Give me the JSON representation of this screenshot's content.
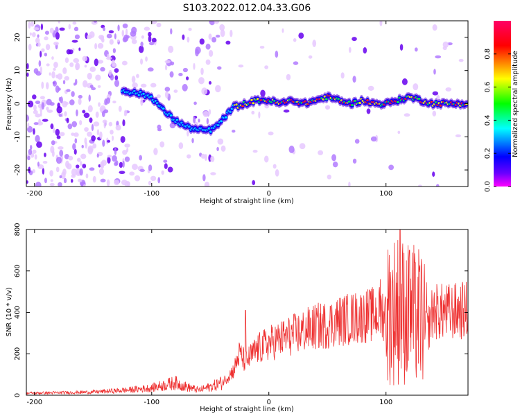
{
  "title": "S103.2022.012.04.33.G06",
  "chart_data": [
    {
      "type": "heatmap",
      "xlabel": "Height of straight line (km)",
      "ylabel": "Frequency (Hz)",
      "xlim": [
        -207,
        170
      ],
      "ylim": [
        -25,
        25
      ],
      "xticks": [
        -200,
        -100,
        0,
        100
      ],
      "yticks": [
        -20,
        -10,
        0,
        10,
        20
      ],
      "colorbar": {
        "label": "Normalized spectral amplitude",
        "range": [
          0,
          1
        ],
        "ticks": [
          "0.0",
          "0.2",
          "0.4",
          "0.6",
          "0.8"
        ],
        "colormap": [
          "#ff00ff",
          "#6a00ff",
          "#0000ff",
          "#00ffff",
          "#00ff00",
          "#ffff00",
          "#ff0000",
          "#ff0066"
        ]
      },
      "ridge": {
        "x": [
          -125,
          -110,
          -100,
          -90,
          -80,
          -70,
          -60,
          -50,
          -45,
          -40,
          -35,
          -30,
          -20,
          -10,
          0,
          10,
          20,
          30,
          40,
          50,
          60,
          70,
          80,
          90,
          100,
          110,
          120,
          130,
          140,
          150,
          160,
          170
        ],
        "y": [
          4,
          3,
          2,
          -2,
          -5,
          -7,
          -8,
          -8,
          -7,
          -5,
          -3,
          -1,
          0,
          1,
          1,
          0,
          1,
          0,
          1,
          2,
          1,
          0,
          1,
          0,
          0,
          1,
          2,
          1,
          0,
          0,
          0,
          0
        ]
      }
    },
    {
      "type": "line",
      "xlabel": "Height of straight line (km)",
      "ylabel": "SNR (10 * v/v)",
      "xlim": [
        -207,
        170
      ],
      "ylim": [
        0,
        800
      ],
      "xticks": [
        -200,
        -100,
        0,
        100
      ],
      "yticks": [
        0,
        200,
        400,
        600,
        800
      ],
      "line_color": "#ee3030",
      "series": [
        {
          "x": [
            -207,
            -180,
            -150,
            -120,
            -100,
            -80,
            -70,
            -60,
            -50,
            -40,
            -30,
            -25,
            -20,
            -10,
            0,
            10,
            20,
            30,
            40,
            50,
            60,
            70,
            80,
            90,
            100,
            110,
            120,
            130,
            135,
            140,
            150,
            160,
            170
          ],
          "values": [
            10,
            12,
            15,
            25,
            35,
            60,
            40,
            25,
            40,
            60,
            120,
            200,
            160,
            220,
            250,
            270,
            290,
            310,
            330,
            340,
            360,
            370,
            380,
            390,
            400,
            420,
            390,
            380,
            300,
            405,
            400,
            405,
            410
          ]
        }
      ],
      "spikes": [
        {
          "x": -20,
          "value": 410
        },
        {
          "x": 112,
          "value": 800
        },
        {
          "x": 120,
          "value": 700
        },
        {
          "x": 125,
          "value": 640
        },
        {
          "x": 95,
          "value": 560
        }
      ]
    }
  ]
}
